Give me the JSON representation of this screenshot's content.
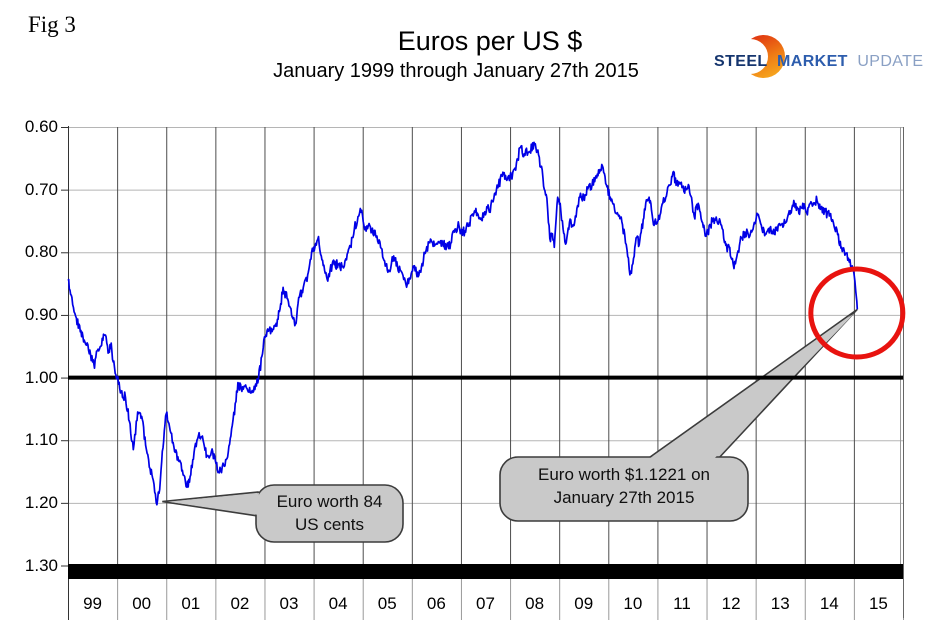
{
  "figure_label": "Fig 3",
  "header": {
    "title": "Euros per US $",
    "subtitle": "January 1999 through January 27th 2015"
  },
  "logo": {
    "word1": "STEEL",
    "word2": "MARKET",
    "word3": "UPDATE",
    "navy": "#15356e",
    "blue": "#2d5dad",
    "light_blue": "#8aa0c4",
    "crescent_orange": "#ef7c15"
  },
  "chart_data": {
    "type": "line",
    "title": "Euros per US $",
    "subtitle": "January 1999 through January 27th 2015",
    "xlabel": "",
    "ylabel": "",
    "x_tick_labels": [
      "99",
      "00",
      "01",
      "02",
      "03",
      "04",
      "05",
      "06",
      "07",
      "08",
      "09",
      "10",
      "11",
      "12",
      "13",
      "14",
      "15"
    ],
    "y_tick_labels": [
      "0.60",
      "0.70",
      "0.80",
      "0.90",
      "1.00",
      "1.10",
      "1.20",
      "1.30"
    ],
    "y_tick_values": [
      0.6,
      0.7,
      0.8,
      0.9,
      1.0,
      1.1,
      1.2,
      1.3
    ],
    "x_range": [
      1999,
      2016
    ],
    "y_range": [
      0.6,
      1.3
    ],
    "y_axis_direction": "inverted (0.60 at top, 1.30 at bottom)",
    "grid": {
      "vertical": true,
      "horizontal": true
    },
    "reference_line": {
      "value": 1.0,
      "color": "#000000"
    },
    "bottom_bar": {
      "value": 1.3,
      "color": "#000000"
    },
    "line_color": "#0000e6",
    "series": [
      {
        "name": "Euros per US $ (daily)",
        "points": [
          [
            1999.0,
            0.845
          ],
          [
            1999.08,
            0.872
          ],
          [
            1999.17,
            0.905
          ],
          [
            1999.25,
            0.927
          ],
          [
            1999.33,
            0.94
          ],
          [
            1999.42,
            0.957
          ],
          [
            1999.5,
            0.975
          ],
          [
            1999.54,
            0.985
          ],
          [
            1999.58,
            0.958
          ],
          [
            1999.67,
            0.95
          ],
          [
            1999.75,
            0.932
          ],
          [
            1999.83,
            0.96
          ],
          [
            1999.88,
            0.945
          ],
          [
            1999.92,
            0.975
          ],
          [
            2000.0,
            1.0
          ],
          [
            2000.08,
            1.022
          ],
          [
            2000.17,
            1.032
          ],
          [
            2000.25,
            1.07
          ],
          [
            2000.33,
            1.115
          ],
          [
            2000.42,
            1.055
          ],
          [
            2000.5,
            1.062
          ],
          [
            2000.58,
            1.108
          ],
          [
            2000.67,
            1.145
          ],
          [
            2000.75,
            1.17
          ],
          [
            2000.81,
            1.203
          ],
          [
            2000.88,
            1.165
          ],
          [
            2000.96,
            1.085
          ],
          [
            2001.0,
            1.058
          ],
          [
            2001.08,
            1.085
          ],
          [
            2001.17,
            1.118
          ],
          [
            2001.25,
            1.133
          ],
          [
            2001.33,
            1.148
          ],
          [
            2001.42,
            1.175
          ],
          [
            2001.5,
            1.155
          ],
          [
            2001.58,
            1.112
          ],
          [
            2001.67,
            1.088
          ],
          [
            2001.75,
            1.1
          ],
          [
            2001.83,
            1.125
          ],
          [
            2001.92,
            1.118
          ],
          [
            2002.0,
            1.133
          ],
          [
            2002.08,
            1.152
          ],
          [
            2002.17,
            1.14
          ],
          [
            2002.25,
            1.127
          ],
          [
            2002.33,
            1.082
          ],
          [
            2002.42,
            1.038
          ],
          [
            2002.46,
            1.008
          ],
          [
            2002.54,
            1.022
          ],
          [
            2002.63,
            1.016
          ],
          [
            2002.71,
            1.024
          ],
          [
            2002.79,
            1.014
          ],
          [
            2002.88,
            1.0
          ],
          [
            2002.96,
            0.962
          ],
          [
            2003.0,
            0.935
          ],
          [
            2003.08,
            0.926
          ],
          [
            2003.17,
            0.923
          ],
          [
            2003.25,
            0.918
          ],
          [
            2003.33,
            0.882
          ],
          [
            2003.38,
            0.856
          ],
          [
            2003.46,
            0.874
          ],
          [
            2003.54,
            0.89
          ],
          [
            2003.58,
            0.906
          ],
          [
            2003.63,
            0.915
          ],
          [
            2003.71,
            0.872
          ],
          [
            2003.79,
            0.856
          ],
          [
            2003.88,
            0.836
          ],
          [
            2003.96,
            0.8
          ],
          [
            2004.04,
            0.786
          ],
          [
            2004.1,
            0.775
          ],
          [
            2004.17,
            0.812
          ],
          [
            2004.29,
            0.846
          ],
          [
            2004.38,
            0.818
          ],
          [
            2004.5,
            0.82
          ],
          [
            2004.58,
            0.823
          ],
          [
            2004.67,
            0.812
          ],
          [
            2004.75,
            0.79
          ],
          [
            2004.83,
            0.762
          ],
          [
            2004.92,
            0.742
          ],
          [
            2004.98,
            0.733
          ],
          [
            2005.04,
            0.764
          ],
          [
            2005.13,
            0.754
          ],
          [
            2005.21,
            0.771
          ],
          [
            2005.29,
            0.774
          ],
          [
            2005.38,
            0.794
          ],
          [
            2005.46,
            0.822
          ],
          [
            2005.54,
            0.829
          ],
          [
            2005.63,
            0.806
          ],
          [
            2005.71,
            0.824
          ],
          [
            2005.79,
            0.831
          ],
          [
            2005.88,
            0.851
          ],
          [
            2005.96,
            0.843
          ],
          [
            2006.0,
            0.831
          ],
          [
            2006.08,
            0.824
          ],
          [
            2006.13,
            0.839
          ],
          [
            2006.21,
            0.818
          ],
          [
            2006.29,
            0.797
          ],
          [
            2006.38,
            0.779
          ],
          [
            2006.46,
            0.79
          ],
          [
            2006.54,
            0.783
          ],
          [
            2006.63,
            0.786
          ],
          [
            2006.71,
            0.791
          ],
          [
            2006.79,
            0.786
          ],
          [
            2006.88,
            0.763
          ],
          [
            2006.96,
            0.758
          ],
          [
            2007.0,
            0.769
          ],
          [
            2007.08,
            0.766
          ],
          [
            2007.17,
            0.753
          ],
          [
            2007.25,
            0.742
          ],
          [
            2007.29,
            0.736
          ],
          [
            2007.38,
            0.745
          ],
          [
            2007.46,
            0.744
          ],
          [
            2007.54,
            0.729
          ],
          [
            2007.58,
            0.736
          ],
          [
            2007.67,
            0.713
          ],
          [
            2007.75,
            0.697
          ],
          [
            2007.83,
            0.678
          ],
          [
            2007.88,
            0.673
          ],
          [
            2007.92,
            0.683
          ],
          [
            2008.0,
            0.678
          ],
          [
            2008.04,
            0.683
          ],
          [
            2008.13,
            0.658
          ],
          [
            2008.21,
            0.633
          ],
          [
            2008.29,
            0.643
          ],
          [
            2008.38,
            0.64
          ],
          [
            2008.5,
            0.628
          ],
          [
            2008.58,
            0.644
          ],
          [
            2008.67,
            0.682
          ],
          [
            2008.75,
            0.714
          ],
          [
            2008.81,
            0.778
          ],
          [
            2008.85,
            0.772
          ],
          [
            2008.9,
            0.792
          ],
          [
            2008.94,
            0.745
          ],
          [
            2008.97,
            0.712
          ],
          [
            2009.02,
            0.722
          ],
          [
            2009.08,
            0.763
          ],
          [
            2009.13,
            0.787
          ],
          [
            2009.17,
            0.77
          ],
          [
            2009.21,
            0.752
          ],
          [
            2009.29,
            0.756
          ],
          [
            2009.33,
            0.742
          ],
          [
            2009.42,
            0.712
          ],
          [
            2009.5,
            0.712
          ],
          [
            2009.58,
            0.699
          ],
          [
            2009.67,
            0.692
          ],
          [
            2009.75,
            0.678
          ],
          [
            2009.83,
            0.668
          ],
          [
            2009.88,
            0.662
          ],
          [
            2009.96,
            0.692
          ],
          [
            2010.04,
            0.712
          ],
          [
            2010.13,
            0.733
          ],
          [
            2010.21,
            0.742
          ],
          [
            2010.29,
            0.756
          ],
          [
            2010.38,
            0.796
          ],
          [
            2010.44,
            0.836
          ],
          [
            2010.5,
            0.818
          ],
          [
            2010.54,
            0.792
          ],
          [
            2010.58,
            0.776
          ],
          [
            2010.63,
            0.788
          ],
          [
            2010.71,
            0.748
          ],
          [
            2010.79,
            0.718
          ],
          [
            2010.83,
            0.712
          ],
          [
            2010.88,
            0.733
          ],
          [
            2010.92,
            0.756
          ],
          [
            2010.96,
            0.747
          ],
          [
            2011.0,
            0.752
          ],
          [
            2011.08,
            0.729
          ],
          [
            2011.17,
            0.712
          ],
          [
            2011.25,
            0.693
          ],
          [
            2011.33,
            0.671
          ],
          [
            2011.38,
            0.693
          ],
          [
            2011.46,
            0.691
          ],
          [
            2011.54,
            0.703
          ],
          [
            2011.63,
            0.692
          ],
          [
            2011.71,
            0.723
          ],
          [
            2011.75,
            0.743
          ],
          [
            2011.83,
            0.722
          ],
          [
            2011.92,
            0.753
          ],
          [
            2011.96,
            0.766
          ],
          [
            2012.0,
            0.772
          ],
          [
            2012.08,
            0.757
          ],
          [
            2012.13,
            0.748
          ],
          [
            2012.21,
            0.749
          ],
          [
            2012.29,
            0.756
          ],
          [
            2012.38,
            0.783
          ],
          [
            2012.42,
            0.799
          ],
          [
            2012.46,
            0.791
          ],
          [
            2012.54,
            0.818
          ],
          [
            2012.56,
            0.826
          ],
          [
            2012.63,
            0.801
          ],
          [
            2012.71,
            0.777
          ],
          [
            2012.79,
            0.768
          ],
          [
            2012.88,
            0.774
          ],
          [
            2012.96,
            0.757
          ],
          [
            2013.04,
            0.74
          ],
          [
            2013.13,
            0.763
          ],
          [
            2013.21,
            0.771
          ],
          [
            2013.29,
            0.761
          ],
          [
            2013.38,
            0.771
          ],
          [
            2013.46,
            0.757
          ],
          [
            2013.54,
            0.754
          ],
          [
            2013.63,
            0.751
          ],
          [
            2013.71,
            0.734
          ],
          [
            2013.79,
            0.722
          ],
          [
            2013.83,
            0.733
          ],
          [
            2013.88,
            0.738
          ],
          [
            2013.96,
            0.722
          ],
          [
            2014.04,
            0.737
          ],
          [
            2014.08,
            0.728
          ],
          [
            2014.17,
            0.724
          ],
          [
            2014.25,
            0.717
          ],
          [
            2014.33,
            0.728
          ],
          [
            2014.42,
            0.735
          ],
          [
            2014.5,
            0.742
          ],
          [
            2014.58,
            0.752
          ],
          [
            2014.67,
            0.772
          ],
          [
            2014.75,
            0.792
          ],
          [
            2014.83,
            0.802
          ],
          [
            2014.92,
            0.812
          ],
          [
            2014.98,
            0.826
          ],
          [
            2015.0,
            0.833
          ],
          [
            2015.02,
            0.846
          ],
          [
            2015.04,
            0.863
          ],
          [
            2015.06,
            0.878
          ],
          [
            2015.07,
            0.891
          ]
        ]
      }
    ],
    "annotations": [
      {
        "text_lines": [
          "Euro worth 84",
          "US cents"
        ],
        "points_to": {
          "x": 2000.92,
          "value": 1.198
        }
      },
      {
        "text_lines": [
          "Euro worth $1.1221 on",
          "January 27th 2015"
        ],
        "points_to": {
          "x": 2015.07,
          "value": 0.8911
        }
      }
    ],
    "highlight_circle": {
      "x": 2015.06,
      "value": 0.897,
      "color": "#e8130f"
    }
  }
}
